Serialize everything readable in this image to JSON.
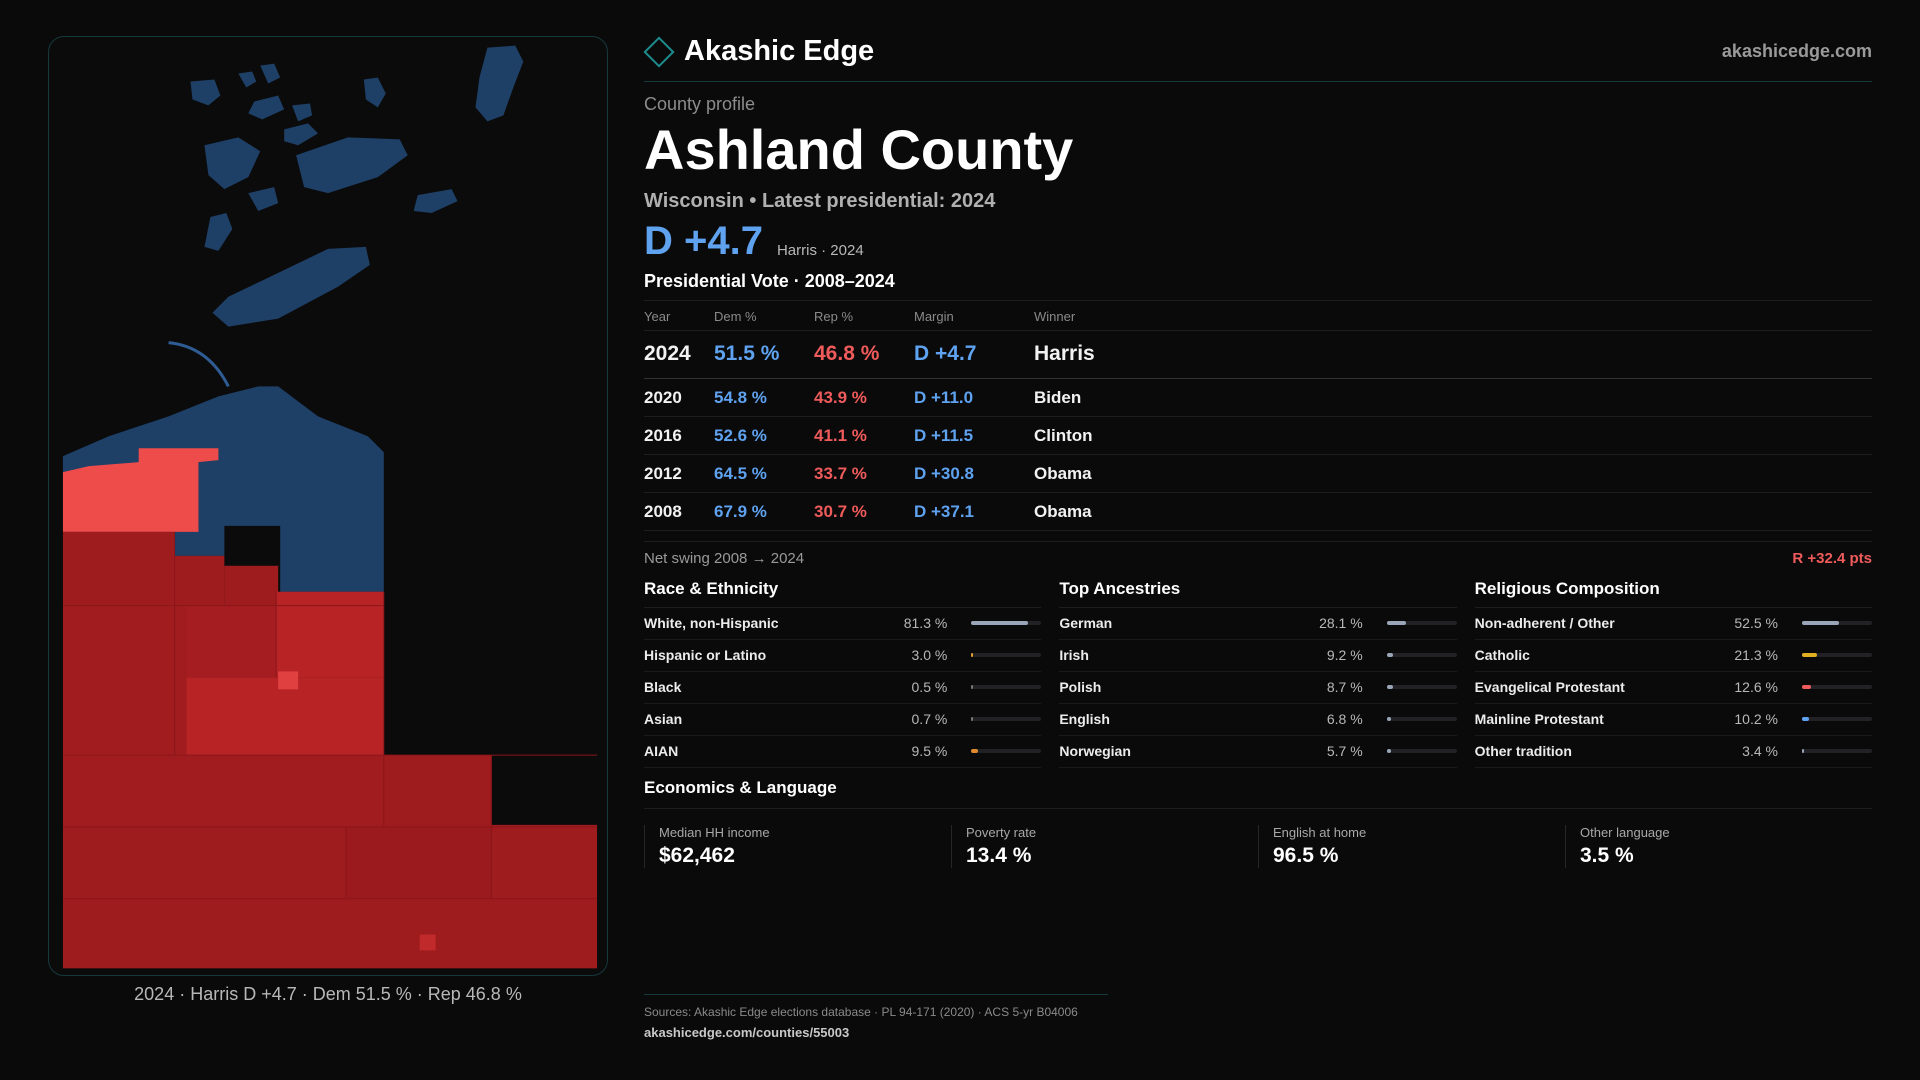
{
  "map": {
    "caption": "2024 · Harris D +4.7 · Dem 51.5 % · Rep 46.8 %",
    "colors": {
      "dem": "#1e3f66",
      "rep_strong": "#9e1b1e",
      "rep_mid": "#b82426",
      "rep_light": "#ee4b4b"
    }
  },
  "header": {
    "brand": "Akashic Edge",
    "site": "akashicedge.com",
    "logo_icon": "diamond-icon"
  },
  "profile": {
    "eyebrow": "County profile",
    "title": "Ashland County",
    "subtitle": "Wisconsin • Latest presidential: 2024",
    "margin": "D +4.7",
    "margin_note": "Harris · 2024"
  },
  "votes": {
    "title": "Presidential Vote · 2008–2024",
    "headers": [
      "Year",
      "Dem %",
      "Rep %",
      "Margin",
      "Winner"
    ],
    "rows": [
      {
        "year": "2024",
        "dem": "51.5 %",
        "rep": "46.8 %",
        "margin": "D +4.7",
        "winner": "Harris"
      },
      {
        "year": "2020",
        "dem": "54.8 %",
        "rep": "43.9 %",
        "margin": "D +11.0",
        "winner": "Biden"
      },
      {
        "year": "2016",
        "dem": "52.6 %",
        "rep": "41.1 %",
        "margin": "D +11.5",
        "winner": "Clinton"
      },
      {
        "year": "2012",
        "dem": "64.5 %",
        "rep": "33.7 %",
        "margin": "D +30.8",
        "winner": "Obama"
      },
      {
        "year": "2008",
        "dem": "67.9 %",
        "rep": "30.7 %",
        "margin": "D +37.1",
        "winner": "Obama"
      }
    ],
    "swing_label": "Net swing 2008 → 2024",
    "swing_value": "R +32.4 pts"
  },
  "demographics": {
    "race": {
      "title": "Race & Ethnicity",
      "items": [
        {
          "label": "White, non-Hispanic",
          "pct": "81.3 %",
          "value": 81.3,
          "color": "#9aa6b8"
        },
        {
          "label": "Hispanic or Latino",
          "pct": "3.0 %",
          "value": 3.0,
          "color": "#e0a030"
        },
        {
          "label": "Black",
          "pct": "0.5 %",
          "value": 0.5,
          "color": "#777777"
        },
        {
          "label": "Asian",
          "pct": "0.7 %",
          "value": 0.7,
          "color": "#777777"
        },
        {
          "label": "AIAN",
          "pct": "9.5 %",
          "value": 9.5,
          "color": "#e08a30"
        }
      ]
    },
    "ancestry": {
      "title": "Top Ancestries",
      "items": [
        {
          "label": "German",
          "pct": "28.1 %",
          "value": 28.1,
          "color": "#9aa6b8"
        },
        {
          "label": "Irish",
          "pct": "9.2 %",
          "value": 9.2,
          "color": "#9aa6b8"
        },
        {
          "label": "Polish",
          "pct": "8.7 %",
          "value": 8.7,
          "color": "#9aa6b8"
        },
        {
          "label": "English",
          "pct": "6.8 %",
          "value": 6.8,
          "color": "#9aa6b8"
        },
        {
          "label": "Norwegian",
          "pct": "5.7 %",
          "value": 5.7,
          "color": "#9aa6b8"
        }
      ]
    },
    "religion": {
      "title": "Religious Composition",
      "items": [
        {
          "label": "Non-adherent / Other",
          "pct": "52.5 %",
          "value": 52.5,
          "color": "#9aa6b8"
        },
        {
          "label": "Catholic",
          "pct": "21.3 %",
          "value": 21.3,
          "color": "#e0b020"
        },
        {
          "label": "Evangelical Protestant",
          "pct": "12.6 %",
          "value": 12.6,
          "color": "#ef5b5b"
        },
        {
          "label": "Mainline Protestant",
          "pct": "10.2 %",
          "value": 10.2,
          "color": "#5ea2f0"
        },
        {
          "label": "Other tradition",
          "pct": "3.4 %",
          "value": 3.4,
          "color": "#9aa6b8"
        }
      ]
    }
  },
  "economics": {
    "title": "Economics & Language",
    "items": [
      {
        "label": "Median HH income",
        "value": "$62,462"
      },
      {
        "label": "Poverty rate",
        "value": "13.4 %"
      },
      {
        "label": "English at home",
        "value": "96.5 %"
      },
      {
        "label": "Other language",
        "value": "3.5 %"
      }
    ]
  },
  "footer": {
    "sources": "Sources: Akashic Edge elections database · PL 94-171 (2020) · ACS 5-yr B04006",
    "url": "akashicedge.com/counties/55003"
  }
}
